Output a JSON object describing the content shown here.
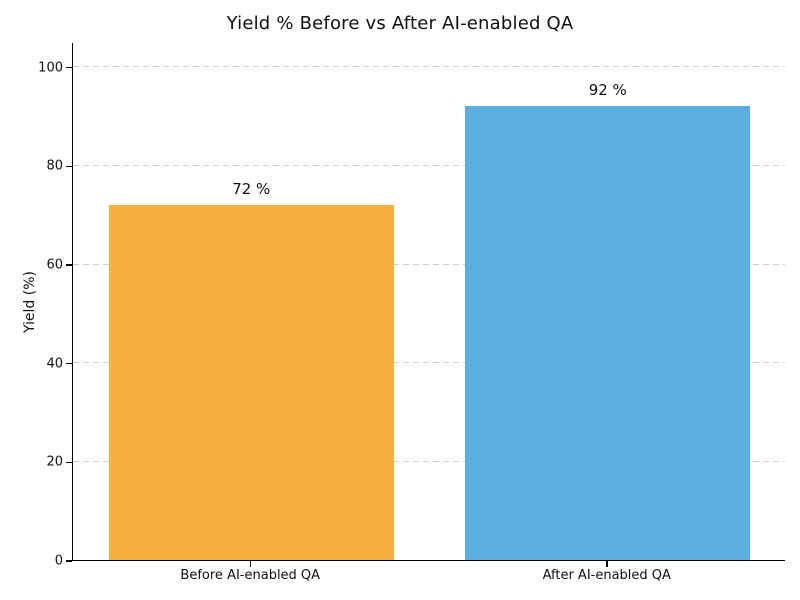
{
  "chart_data": {
    "type": "bar",
    "title": "Yield % Before vs After AI-enabled QA",
    "categories": [
      "Before AI-enabled QA",
      "After AI-enabled QA"
    ],
    "values": [
      72,
      92
    ],
    "data_labels": [
      "72 %",
      "92 %"
    ],
    "bar_colors": [
      "#F5B041",
      "#5DADE2"
    ],
    "xlabel": "",
    "ylabel": "Yield (%)",
    "ylim": [
      0,
      105
    ],
    "yticks": [
      0,
      20,
      40,
      60,
      80,
      100
    ],
    "grid": {
      "axis": "y",
      "style": "dashed",
      "color": "#cccccc"
    },
    "legend": "none",
    "background": "#ffffff",
    "axis_color": "#000000",
    "text_color": "#111111"
  }
}
